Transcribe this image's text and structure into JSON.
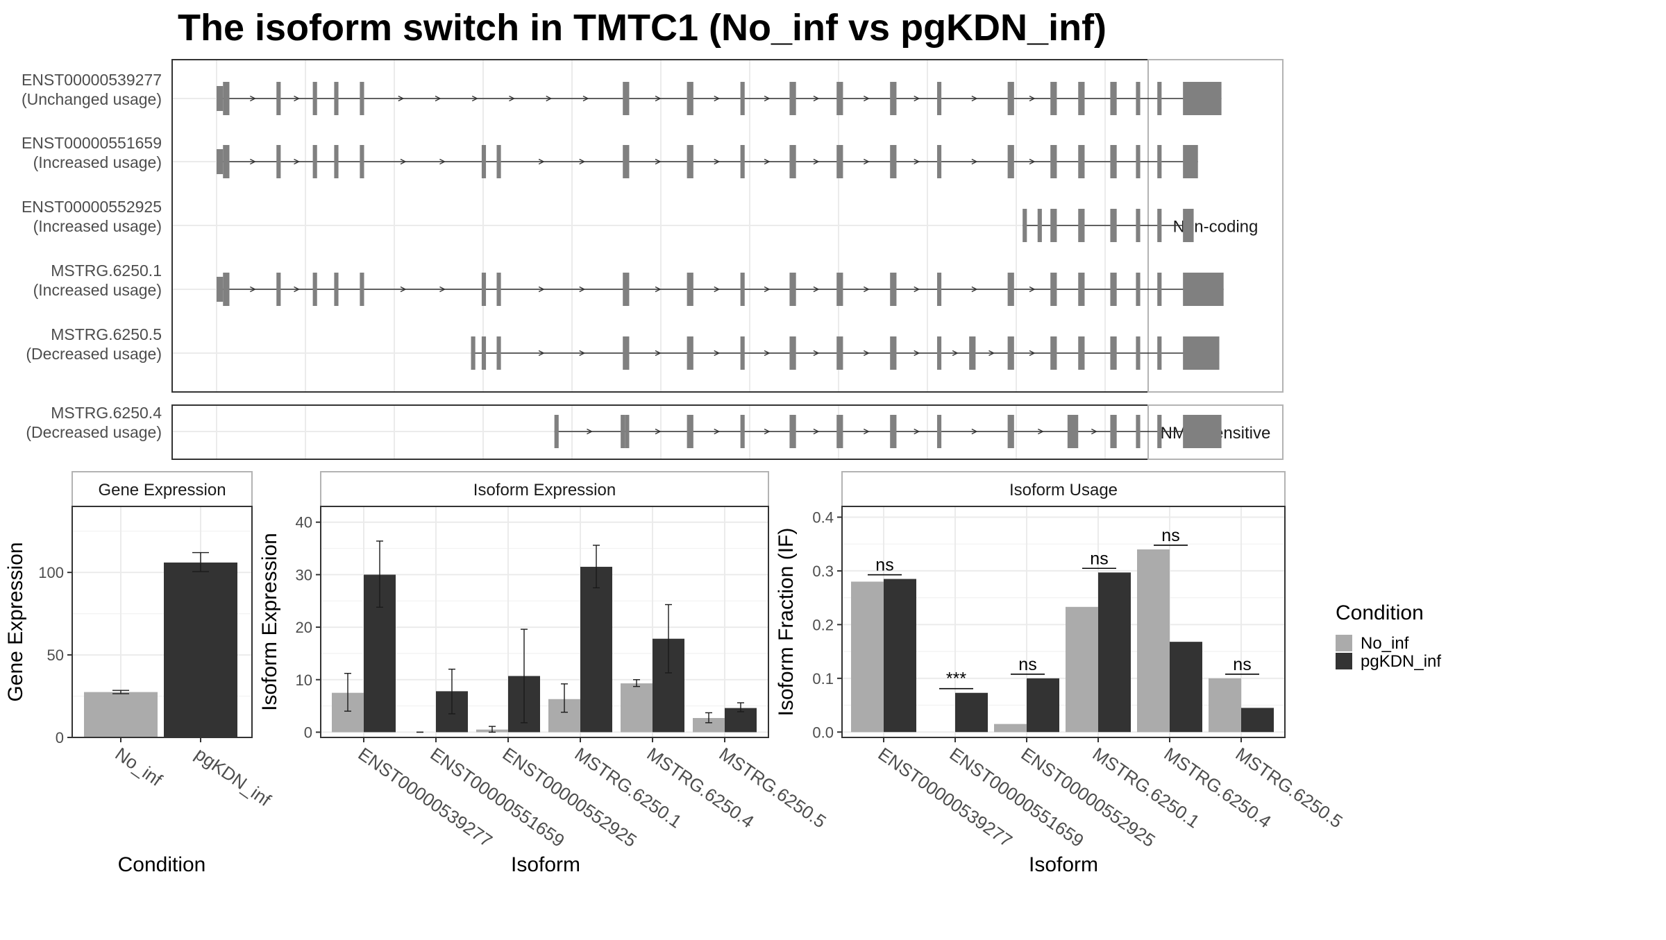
{
  "title": "The isoform switch in TMTC1 (No_inf vs pgKDN_inf)",
  "colors": {
    "no_inf": "#ababab",
    "pgkdn_inf": "#333333",
    "exon": "#808080",
    "grid": "#ebebeb",
    "panel_border": "#333333",
    "strip_border": "#b3b3b3"
  },
  "isoform_panels": [
    {
      "label": "Non-coding",
      "start": 0,
      "end": 5
    },
    {
      "label": "NMD Sensitive",
      "start": 5,
      "end": 6
    }
  ],
  "isoforms": [
    {
      "id": "ENST00000539277",
      "usage": "(Unchanged usage)",
      "exons": [
        [
          0,
          3
        ],
        [
          3,
          6
        ],
        [
          28,
          30
        ],
        [
          45,
          47
        ],
        [
          55,
          57
        ],
        [
          67,
          69
        ],
        [
          190,
          193
        ],
        [
          220,
          223
        ],
        [
          245,
          247
        ],
        [
          268,
          271
        ],
        [
          290,
          293
        ],
        [
          315,
          318
        ],
        [
          337,
          339
        ],
        [
          370,
          373
        ],
        [
          390,
          393
        ],
        [
          403,
          406
        ],
        [
          418,
          421
        ],
        [
          430,
          432
        ],
        [
          440,
          442
        ],
        [
          452,
          470
        ]
      ]
    },
    {
      "id": "ENST00000551659",
      "usage": "(Increased usage)",
      "exons": [
        [
          0,
          3
        ],
        [
          3,
          6
        ],
        [
          28,
          30
        ],
        [
          45,
          47
        ],
        [
          55,
          57
        ],
        [
          67,
          69
        ],
        [
          124,
          126
        ],
        [
          131,
          133
        ],
        [
          190,
          193
        ],
        [
          220,
          223
        ],
        [
          245,
          247
        ],
        [
          268,
          271
        ],
        [
          290,
          293
        ],
        [
          315,
          318
        ],
        [
          337,
          339
        ],
        [
          370,
          373
        ],
        [
          390,
          393
        ],
        [
          403,
          406
        ],
        [
          418,
          421
        ],
        [
          430,
          432
        ],
        [
          440,
          442
        ],
        [
          452,
          459
        ]
      ]
    },
    {
      "id": "ENST00000552925",
      "usage": "(Increased usage)",
      "exons": [
        [
          377,
          379
        ],
        [
          384,
          386
        ],
        [
          390,
          393
        ],
        [
          403,
          406
        ],
        [
          418,
          421
        ],
        [
          430,
          432
        ],
        [
          440,
          442
        ],
        [
          452,
          457
        ]
      ]
    },
    {
      "id": "MSTRG.6250.1",
      "usage": "(Increased usage)",
      "exons": [
        [
          0,
          3
        ],
        [
          3,
          6
        ],
        [
          28,
          30
        ],
        [
          45,
          47
        ],
        [
          55,
          57
        ],
        [
          67,
          69
        ],
        [
          124,
          126
        ],
        [
          131,
          133
        ],
        [
          190,
          193
        ],
        [
          220,
          223
        ],
        [
          245,
          247
        ],
        [
          268,
          271
        ],
        [
          290,
          293
        ],
        [
          315,
          318
        ],
        [
          337,
          339
        ],
        [
          370,
          373
        ],
        [
          390,
          393
        ],
        [
          403,
          406
        ],
        [
          418,
          421
        ],
        [
          430,
          432
        ],
        [
          440,
          442
        ],
        [
          452,
          471
        ]
      ]
    },
    {
      "id": "MSTRG.6250.5",
      "usage": "(Decreased usage)",
      "exons": [
        [
          119,
          121
        ],
        [
          124,
          126
        ],
        [
          131,
          133
        ],
        [
          190,
          193
        ],
        [
          220,
          223
        ],
        [
          245,
          247
        ],
        [
          268,
          271
        ],
        [
          290,
          293
        ],
        [
          315,
          318
        ],
        [
          337,
          339
        ],
        [
          352,
          353
        ],
        [
          353,
          355
        ],
        [
          370,
          373
        ],
        [
          390,
          393
        ],
        [
          403,
          406
        ],
        [
          418,
          421
        ],
        [
          430,
          432
        ],
        [
          440,
          442
        ],
        [
          452,
          469
        ]
      ]
    },
    {
      "id": "MSTRG.6250.4",
      "usage": "(Decreased usage)",
      "exons": [
        [
          158,
          160
        ],
        [
          189,
          191
        ],
        [
          191,
          193
        ],
        [
          220,
          223
        ],
        [
          245,
          247
        ],
        [
          268,
          271
        ],
        [
          290,
          293
        ],
        [
          315,
          318
        ],
        [
          337,
          339
        ],
        [
          370,
          373
        ],
        [
          398,
          400
        ],
        [
          400,
          403
        ],
        [
          418,
          421
        ],
        [
          430,
          432
        ],
        [
          440,
          442
        ],
        [
          452,
          470
        ]
      ]
    }
  ],
  "gene_expression": {
    "strip": "Gene Expression",
    "ylabel": "Gene Expression",
    "xlabel": "Condition",
    "ylim": [
      0,
      140
    ],
    "yticks": [
      0,
      50,
      100
    ],
    "categories": [
      "No_inf",
      "pgKDN_inf"
    ],
    "values": [
      27.5,
      106
    ],
    "errors": [
      [
        26.5,
        28.5
      ],
      [
        100.5,
        112
      ]
    ]
  },
  "isoform_expression": {
    "strip": "Isoform Expression",
    "ylabel": "Isoform Expression",
    "xlabel": "Isoform",
    "ylim": [
      -1,
      43
    ],
    "yticks": [
      0,
      10,
      20,
      30,
      40
    ],
    "categories": [
      "ENST00000539277",
      "ENST00000551659",
      "ENST00000552925",
      "MSTRG.6250.1",
      "MSTRG.6250.4",
      "MSTRG.6250.5"
    ],
    "series": [
      {
        "name": "No_inf",
        "values": [
          7.5,
          0,
          0.5,
          6.3,
          9.3,
          2.7
        ],
        "errors": [
          [
            4,
            11.2
          ],
          [
            0,
            0
          ],
          [
            0,
            1.1
          ],
          [
            3.8,
            9.2
          ],
          [
            8.7,
            10
          ],
          [
            1.8,
            3.7
          ]
        ]
      },
      {
        "name": "pgKDN_inf",
        "values": [
          30,
          7.8,
          10.7,
          31.5,
          17.8,
          4.6
        ],
        "errors": [
          [
            23.8,
            36.4
          ],
          [
            3.5,
            12
          ],
          [
            1.8,
            19.6
          ],
          [
            27.5,
            35.6
          ],
          [
            11.3,
            24.3
          ],
          [
            3.9,
            5.6
          ]
        ]
      }
    ]
  },
  "isoform_usage": {
    "strip": "Isoform Usage",
    "ylabel": "Isoform Fraction (IF)",
    "xlabel": "Isoform",
    "ylim": [
      -0.01,
      0.42
    ],
    "yticks": [
      0.0,
      0.1,
      0.2,
      0.3,
      0.4
    ],
    "ytick_labels": [
      "0.0",
      "0.1",
      "0.2",
      "0.3",
      "0.4"
    ],
    "categories": [
      "ENST00000539277",
      "ENST00000551659",
      "ENST00000552925",
      "MSTRG.6250.1",
      "MSTRG.6250.4",
      "MSTRG.6250.5"
    ],
    "series": [
      {
        "name": "No_inf",
        "values": [
          0.28,
          0.0,
          0.015,
          0.233,
          0.34,
          0.1
        ]
      },
      {
        "name": "pgKDN_inf",
        "values": [
          0.285,
          0.073,
          0.1,
          0.297,
          0.168,
          0.045
        ]
      }
    ],
    "significance": [
      "ns",
      "***",
      "ns",
      "ns",
      "ns",
      "ns"
    ]
  },
  "legend": {
    "title": "Condition",
    "entries": [
      "No_inf",
      "pgKDN_inf"
    ]
  }
}
